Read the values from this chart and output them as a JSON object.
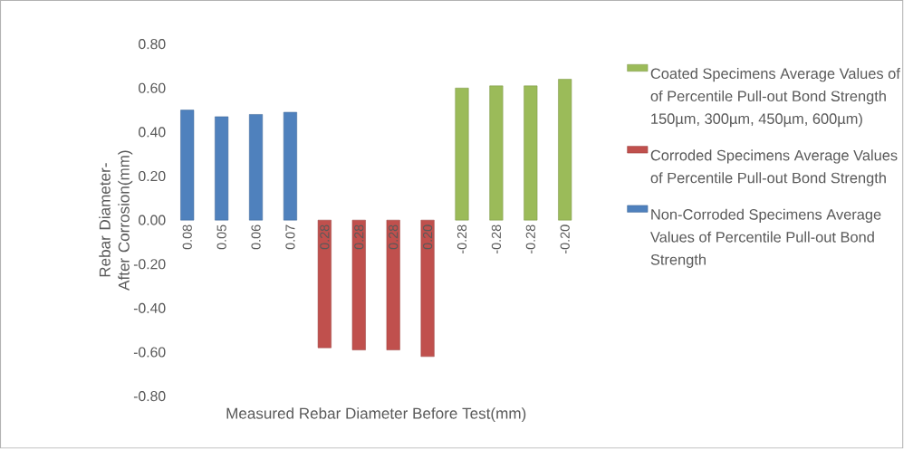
{
  "chart_data": {
    "type": "bar",
    "xlabel": "Measured Rebar Diameter Before Test(mm)",
    "ylabel": "Rebar Diameter- After Corrosion(mm)",
    "categories": [
      "0.08",
      "0.05",
      "0.06",
      "0.07",
      "0.28",
      "0.28",
      "0.28",
      "0.20",
      "-0.28",
      "-0.28",
      "-0.28",
      "-0.20"
    ],
    "series": [
      {
        "name": "Coated Specimens Average Values of of  Percentile Pull-out Bond Strength  150µm, 300µm, 450µm, 600µm)",
        "color": "#9bbb59",
        "values": [
          null,
          null,
          null,
          null,
          null,
          null,
          null,
          null,
          0.6,
          0.61,
          0.61,
          0.64
        ]
      },
      {
        "name": "Corroded Specimens Average Values of  Percentile Pull-out Bond Strength",
        "color": "#c0504d",
        "values": [
          null,
          null,
          null,
          null,
          -0.58,
          -0.59,
          -0.59,
          -0.62,
          null,
          null,
          null,
          null
        ]
      },
      {
        "name": "Non-Corroded Specimens Average Values of  Percentile Pull-out Bond Strength",
        "color": "#4f81bd",
        "values": [
          0.5,
          0.47,
          0.48,
          0.49,
          null,
          null,
          null,
          null,
          null,
          null,
          null,
          null
        ]
      }
    ],
    "ylim": [
      -0.8,
      0.8
    ],
    "yticks": [
      {
        "value": -0.8,
        "label": "-0.80"
      },
      {
        "value": -0.6,
        "label": "-0.60"
      },
      {
        "value": -0.4,
        "label": "-0.40"
      },
      {
        "value": -0.2,
        "label": "-0.20"
      },
      {
        "value": 0,
        "label": "0.00"
      },
      {
        "value": 0.2,
        "label": "0.20"
      },
      {
        "value": 0.4,
        "label": "0.40"
      },
      {
        "value": 0.6,
        "label": "0.60"
      },
      {
        "value": 0.8,
        "label": "0.80"
      }
    ],
    "legend": "right",
    "grid": false
  }
}
